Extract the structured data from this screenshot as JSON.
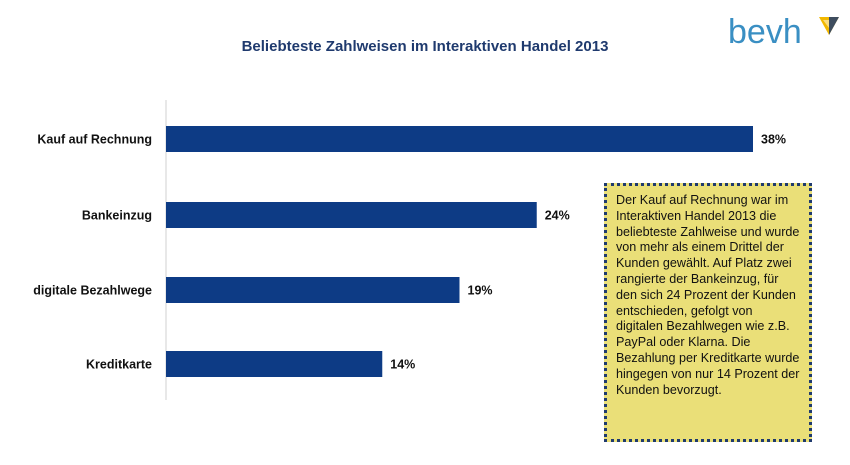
{
  "logo": {
    "text": "bevh",
    "accent_color": "#3a8fc3",
    "mark_color": "#f2b800",
    "mark_dark": "#1f3a6e"
  },
  "note": {
    "text": "Der Kauf auf Rechnung war im Interaktiven Handel 2013 die beliebteste Zahlweise und wurde von mehr als einem Drittel der Kunden gewählt. Auf Platz zwei rangierte der Bankeinzug, für den sich 24 Prozent der Kunden entschieden, gefolgt von digitalen Bezahlwegen wie z.B. PayPal oder Klarna. Die Bezahlung per Kreditkarte wurde hingegen von nur 14 Prozent der Kunden bevorzugt.",
    "background": "#eadf78",
    "border_color": "#1f3a6e"
  },
  "chart_data": {
    "type": "bar",
    "orientation": "horizontal",
    "title": "Beliebteste Zahlweisen im Interaktiven Handel 2013",
    "categories": [
      "Kauf auf Rechnung",
      "Bankeinzug",
      "digitale Bezahlwege",
      "Kreditkarte"
    ],
    "values": [
      38,
      24,
      19,
      14
    ],
    "value_labels": [
      "38%",
      "24%",
      "19%",
      "14%"
    ],
    "unit": "%",
    "xlim": [
      0,
      38
    ],
    "bar_color": "#0d3b85",
    "grid": false,
    "legend": "none"
  }
}
